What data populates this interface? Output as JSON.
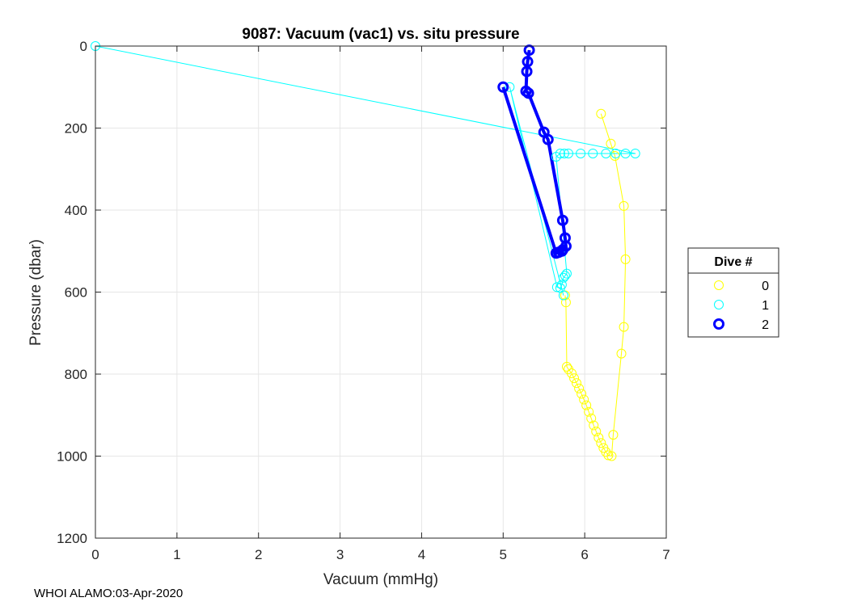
{
  "chart_data": {
    "type": "scatter",
    "title": "9087: Vacuum (vac1) vs. situ pressure",
    "xlabel": "Vacuum (mmHg)",
    "ylabel": "Pressure (dbar)",
    "xlim": [
      0,
      7
    ],
    "ylim": [
      0,
      1200
    ],
    "y_reversed": true,
    "x_ticks": [
      "0",
      "1",
      "2",
      "3",
      "4",
      "5",
      "6",
      "7"
    ],
    "y_ticks": [
      "0",
      "200",
      "400",
      "600",
      "800",
      "1000",
      "1200"
    ],
    "grid": true,
    "legend": {
      "title": "Dive #",
      "placement": "right"
    },
    "series": [
      {
        "name": "0",
        "color": "#ffff00",
        "line_width": 1,
        "marker": "circle",
        "points": [
          [
            6.2,
            165
          ],
          [
            6.32,
            238
          ],
          [
            6.37,
            268
          ],
          [
            6.48,
            390
          ],
          [
            6.5,
            520
          ],
          [
            6.48,
            685
          ],
          [
            6.45,
            750
          ],
          [
            6.35,
            948
          ],
          [
            6.33,
            1000
          ],
          [
            6.29,
            998
          ],
          [
            6.26,
            990
          ],
          [
            6.23,
            980
          ],
          [
            6.2,
            968
          ],
          [
            6.17,
            955
          ],
          [
            6.14,
            940
          ],
          [
            6.11,
            925
          ],
          [
            6.08,
            908
          ],
          [
            6.05,
            892
          ],
          [
            6.02,
            876
          ],
          [
            5.99,
            862
          ],
          [
            5.96,
            848
          ],
          [
            5.93,
            835
          ],
          [
            5.9,
            822
          ],
          [
            5.87,
            810
          ],
          [
            5.84,
            798
          ],
          [
            5.8,
            788
          ],
          [
            5.78,
            782
          ],
          [
            5.77,
            625
          ],
          [
            5.76,
            608
          ]
        ]
      },
      {
        "name": "1",
        "color": "#00ffff",
        "line_width": 1,
        "marker": "circle",
        "points": [
          [
            0.0,
            0
          ],
          [
            6.62,
            262
          ],
          [
            6.5,
            262
          ],
          [
            6.38,
            262
          ],
          [
            6.26,
            262
          ],
          [
            6.1,
            262
          ],
          [
            5.95,
            262
          ],
          [
            5.8,
            262
          ],
          [
            5.75,
            262
          ],
          [
            5.7,
            262
          ],
          [
            5.65,
            270
          ],
          [
            5.78,
            555
          ],
          [
            5.76,
            560
          ],
          [
            5.74,
            565
          ],
          [
            5.72,
            582
          ],
          [
            5.7,
            590
          ],
          [
            5.66,
            588
          ],
          [
            5.08,
            100
          ],
          [
            5.74,
            608
          ]
        ]
      },
      {
        "name": "2",
        "color": "#0000ff",
        "line_width": 4,
        "marker": "circle-thick",
        "points": [
          [
            5.32,
            10
          ],
          [
            5.3,
            38
          ],
          [
            5.29,
            62
          ],
          [
            5.28,
            110
          ],
          [
            5.31,
            115
          ],
          [
            5.5,
            210
          ],
          [
            5.55,
            228
          ],
          [
            5.73,
            425
          ],
          [
            5.76,
            468
          ],
          [
            5.77,
            488
          ],
          [
            5.73,
            497
          ],
          [
            5.72,
            500
          ],
          [
            5.68,
            503
          ],
          [
            5.65,
            505
          ],
          [
            5.0,
            100
          ]
        ]
      }
    ]
  },
  "footer": "WHOI ALAMO:03-Apr-2020"
}
